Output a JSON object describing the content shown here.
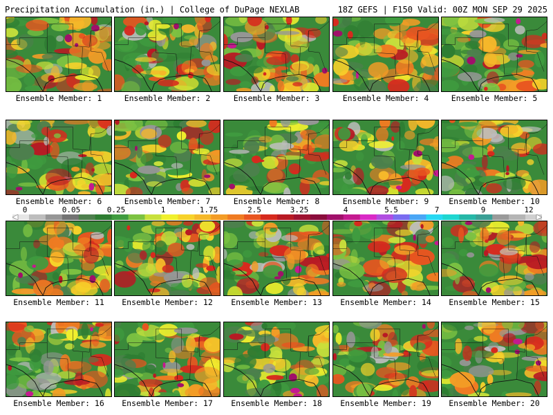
{
  "header": {
    "title": "Precipitation Accumulation (in.) | College of DuPage NEXLAB",
    "run_info": "18Z GEFS | F150 Valid: 00Z MON SEP 29 2025"
  },
  "panels": [
    {
      "label": "Ensemble Member: 1",
      "seed": 11
    },
    {
      "label": "Ensemble Member: 2",
      "seed": 23
    },
    {
      "label": "Ensemble Member: 3",
      "seed": 37
    },
    {
      "label": "Ensemble Member: 4",
      "seed": 41
    },
    {
      "label": "Ensemble Member: 5",
      "seed": 59
    },
    {
      "label": "Ensemble Member: 6",
      "seed": 67
    },
    {
      "label": "Ensemble Member: 7",
      "seed": 71
    },
    {
      "label": "Ensemble Member: 8",
      "seed": 83
    },
    {
      "label": "Ensemble Member: 9",
      "seed": 97
    },
    {
      "label": "Ensemble Member: 10",
      "seed": 101
    },
    {
      "label": "Ensemble Member: 11",
      "seed": 113
    },
    {
      "label": "Ensemble Member: 12",
      "seed": 127
    },
    {
      "label": "Ensemble Member: 13",
      "seed": 131
    },
    {
      "label": "Ensemble Member: 14",
      "seed": 149
    },
    {
      "label": "Ensemble Member: 15",
      "seed": 151
    },
    {
      "label": "Ensemble Member: 16",
      "seed": 163
    },
    {
      "label": "Ensemble Member: 17",
      "seed": 173
    },
    {
      "label": "Ensemble Member: 18",
      "seed": 181
    },
    {
      "label": "Ensemble Member: 19",
      "seed": 191
    },
    {
      "label": "Ensemble Member: 20",
      "seed": 199
    }
  ],
  "colorbar": {
    "tick_labels": [
      "0",
      "0.05",
      "0.25",
      "1",
      "1.75",
      "2.5",
      "3.25",
      "4",
      "5.5",
      "7",
      "9",
      "12"
    ],
    "colors": [
      "#e6e6e6",
      "#bdbdbd",
      "#969696",
      "#737373",
      "#4d7f4d",
      "#2e7d32",
      "#3f9b3f",
      "#7cc242",
      "#c8e03c",
      "#f0f02e",
      "#f7d22a",
      "#f5b82a",
      "#f39c26",
      "#ef7b22",
      "#e85520",
      "#d62a1e",
      "#b81a24",
      "#9e1230",
      "#8a0d3c",
      "#a0106a",
      "#c41a8f",
      "#d92ac6",
      "#b04de0",
      "#7a6cf0",
      "#4aa6f5",
      "#27d8f2",
      "#1fd6d0",
      "#26b7a7",
      "#3a9f95",
      "#9a9a9a",
      "#b5b5b5",
      "#cfcfcf"
    ]
  }
}
